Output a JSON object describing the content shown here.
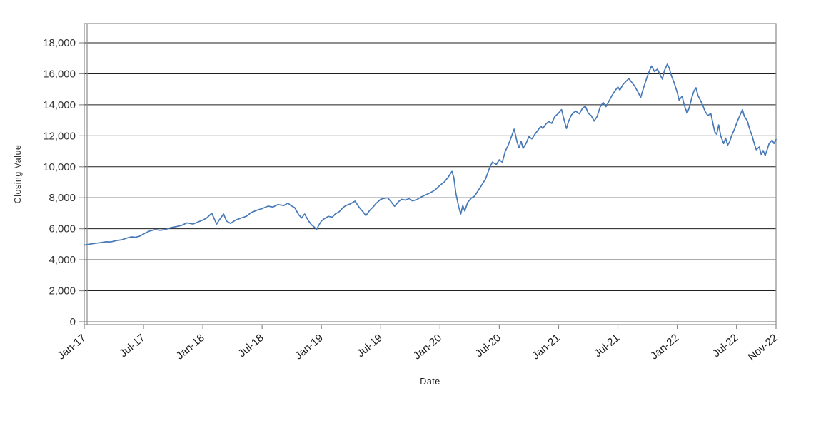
{
  "chart_data": {
    "type": "line",
    "title": "",
    "xlabel": "Date",
    "ylabel": "Closing Value",
    "legend": "none",
    "grid": "horizontal-black-lines-every-2000",
    "xlim_months_since_jan2017": [
      0,
      70
    ],
    "ylim": [
      0,
      18000
    ],
    "x_ticks": [
      {
        "t": 0,
        "label": "Jan-17"
      },
      {
        "t": 6,
        "label": "Jul-17"
      },
      {
        "t": 12,
        "label": "Jan-18"
      },
      {
        "t": 18,
        "label": "Jul-18"
      },
      {
        "t": 24,
        "label": "Jan-19"
      },
      {
        "t": 30,
        "label": "Jul-19"
      },
      {
        "t": 36,
        "label": "Jan-20"
      },
      {
        "t": 42,
        "label": "Jul-20"
      },
      {
        "t": 48,
        "label": "Jan-21"
      },
      {
        "t": 54,
        "label": "Jul-21"
      },
      {
        "t": 60,
        "label": "Jan-22"
      },
      {
        "t": 66,
        "label": "Jul-22"
      },
      {
        "t": 70,
        "label": "Nov-22"
      }
    ],
    "y_ticks": [
      0,
      2000,
      4000,
      6000,
      8000,
      10000,
      12000,
      14000,
      16000,
      18000
    ],
    "y_tick_labels": [
      "0",
      "2,000",
      "4,000",
      "6,000",
      "8,000",
      "10,000",
      "12,000",
      "14,000",
      "16,000",
      "18,000"
    ],
    "colors": {
      "line": "#4779b8",
      "grid": "#1f1f1f",
      "frame": "#8c8c8c",
      "tick": "#8c8c8c",
      "y_label_text": "#333333",
      "x_label_text": "#1a1a1a"
    },
    "series": [
      {
        "name": "Closing Value",
        "color": "#4779b8",
        "points": [
          [
            0,
            4950
          ],
          [
            0.5,
            5000
          ],
          [
            1,
            5050
          ],
          [
            1.6,
            5100
          ],
          [
            2.2,
            5160
          ],
          [
            2.7,
            5150
          ],
          [
            3.3,
            5250
          ],
          [
            3.8,
            5290
          ],
          [
            4.3,
            5400
          ],
          [
            4.8,
            5480
          ],
          [
            5.2,
            5450
          ],
          [
            5.6,
            5520
          ],
          [
            6.1,
            5700
          ],
          [
            6.6,
            5850
          ],
          [
            7.2,
            5950
          ],
          [
            7.7,
            5900
          ],
          [
            8.2,
            5950
          ],
          [
            8.8,
            6080
          ],
          [
            9.4,
            6150
          ],
          [
            9.9,
            6230
          ],
          [
            10.4,
            6380
          ],
          [
            11,
            6300
          ],
          [
            11.6,
            6460
          ],
          [
            12,
            6560
          ],
          [
            12.4,
            6700
          ],
          [
            12.9,
            7000
          ],
          [
            13.4,
            6300
          ],
          [
            13.7,
            6600
          ],
          [
            14.1,
            6950
          ],
          [
            14.4,
            6500
          ],
          [
            14.8,
            6350
          ],
          [
            15.3,
            6550
          ],
          [
            15.9,
            6700
          ],
          [
            16.4,
            6800
          ],
          [
            16.9,
            7050
          ],
          [
            17.5,
            7200
          ],
          [
            18,
            7300
          ],
          [
            18.6,
            7460
          ],
          [
            19.1,
            7400
          ],
          [
            19.6,
            7560
          ],
          [
            20.2,
            7500
          ],
          [
            20.6,
            7660
          ],
          [
            20.9,
            7500
          ],
          [
            21.3,
            7350
          ],
          [
            21.7,
            6900
          ],
          [
            22,
            6700
          ],
          [
            22.3,
            6950
          ],
          [
            22.7,
            6500
          ],
          [
            23,
            6250
          ],
          [
            23.3,
            6100
          ],
          [
            23.5,
            5950
          ],
          [
            23.8,
            6300
          ],
          [
            24,
            6500
          ],
          [
            24.3,
            6650
          ],
          [
            24.7,
            6800
          ],
          [
            25.1,
            6750
          ],
          [
            25.4,
            6950
          ],
          [
            25.8,
            7100
          ],
          [
            26.2,
            7380
          ],
          [
            26.5,
            7500
          ],
          [
            26.9,
            7600
          ],
          [
            27.4,
            7780
          ],
          [
            27.8,
            7400
          ],
          [
            28.2,
            7100
          ],
          [
            28.5,
            6850
          ],
          [
            28.9,
            7200
          ],
          [
            29.3,
            7450
          ],
          [
            29.5,
            7620
          ],
          [
            30,
            7900
          ],
          [
            30.3,
            7960
          ],
          [
            30.7,
            8000
          ],
          [
            31.1,
            7700
          ],
          [
            31.4,
            7450
          ],
          [
            31.8,
            7750
          ],
          [
            32.1,
            7900
          ],
          [
            32.5,
            7850
          ],
          [
            32.9,
            7950
          ],
          [
            33.2,
            7800
          ],
          [
            33.6,
            7860
          ],
          [
            34.1,
            8050
          ],
          [
            34.6,
            8200
          ],
          [
            35.1,
            8350
          ],
          [
            35.5,
            8500
          ],
          [
            36,
            8800
          ],
          [
            36.4,
            9000
          ],
          [
            36.8,
            9300
          ],
          [
            37.2,
            9700
          ],
          [
            37.4,
            9300
          ],
          [
            37.6,
            8300
          ],
          [
            37.9,
            7400
          ],
          [
            38.1,
            6950
          ],
          [
            38.3,
            7500
          ],
          [
            38.5,
            7150
          ],
          [
            38.8,
            7700
          ],
          [
            39.2,
            8000
          ],
          [
            39.5,
            8100
          ],
          [
            39.9,
            8500
          ],
          [
            40.2,
            8800
          ],
          [
            40.6,
            9200
          ],
          [
            41,
            9900
          ],
          [
            41.3,
            10300
          ],
          [
            41.7,
            10150
          ],
          [
            42,
            10450
          ],
          [
            42.3,
            10300
          ],
          [
            42.6,
            11000
          ],
          [
            42.9,
            11400
          ],
          [
            43.2,
            11900
          ],
          [
            43.5,
            12430
          ],
          [
            43.8,
            11600
          ],
          [
            44,
            11230
          ],
          [
            44.2,
            11650
          ],
          [
            44.4,
            11180
          ],
          [
            44.7,
            11500
          ],
          [
            45,
            11950
          ],
          [
            45.3,
            11800
          ],
          [
            45.6,
            12100
          ],
          [
            45.9,
            12350
          ],
          [
            46.2,
            12620
          ],
          [
            46.4,
            12470
          ],
          [
            46.7,
            12750
          ],
          [
            47,
            12920
          ],
          [
            47.3,
            12800
          ],
          [
            47.6,
            13230
          ],
          [
            48,
            13460
          ],
          [
            48.3,
            13690
          ],
          [
            48.5,
            13150
          ],
          [
            48.8,
            12470
          ],
          [
            49,
            12920
          ],
          [
            49.3,
            13350
          ],
          [
            49.7,
            13600
          ],
          [
            50.1,
            13420
          ],
          [
            50.4,
            13760
          ],
          [
            50.7,
            13920
          ],
          [
            51,
            13450
          ],
          [
            51.3,
            13300
          ],
          [
            51.6,
            12950
          ],
          [
            51.9,
            13250
          ],
          [
            52.2,
            13850
          ],
          [
            52.5,
            14150
          ],
          [
            52.8,
            13880
          ],
          [
            53.1,
            14250
          ],
          [
            53.4,
            14600
          ],
          [
            53.7,
            14900
          ],
          [
            54,
            15150
          ],
          [
            54.2,
            14950
          ],
          [
            54.5,
            15300
          ],
          [
            54.8,
            15500
          ],
          [
            55.1,
            15690
          ],
          [
            55.4,
            15450
          ],
          [
            55.7,
            15200
          ],
          [
            56,
            14850
          ],
          [
            56.3,
            14480
          ],
          [
            56.6,
            15100
          ],
          [
            56.9,
            15700
          ],
          [
            57.1,
            16050
          ],
          [
            57.4,
            16500
          ],
          [
            57.7,
            16150
          ],
          [
            58,
            16300
          ],
          [
            58.3,
            15900
          ],
          [
            58.5,
            15650
          ],
          [
            58.7,
            16200
          ],
          [
            59,
            16620
          ],
          [
            59.2,
            16350
          ],
          [
            59.4,
            15900
          ],
          [
            59.7,
            15400
          ],
          [
            60,
            14800
          ],
          [
            60.2,
            14300
          ],
          [
            60.5,
            14550
          ],
          [
            60.7,
            14000
          ],
          [
            61,
            13450
          ],
          [
            61.2,
            13780
          ],
          [
            61.5,
            14500
          ],
          [
            61.7,
            14900
          ],
          [
            61.9,
            15100
          ],
          [
            62.1,
            14600
          ],
          [
            62.3,
            14350
          ],
          [
            62.6,
            13950
          ],
          [
            62.8,
            13600
          ],
          [
            63.1,
            13300
          ],
          [
            63.4,
            13450
          ],
          [
            63.6,
            12850
          ],
          [
            63.8,
            12250
          ],
          [
            64,
            12100
          ],
          [
            64.2,
            12700
          ],
          [
            64.4,
            12000
          ],
          [
            64.7,
            11500
          ],
          [
            64.9,
            11850
          ],
          [
            65.1,
            11400
          ],
          [
            65.3,
            11600
          ],
          [
            65.5,
            12000
          ],
          [
            65.8,
            12450
          ],
          [
            66.1,
            12950
          ],
          [
            66.4,
            13400
          ],
          [
            66.6,
            13690
          ],
          [
            66.8,
            13250
          ],
          [
            67.1,
            12950
          ],
          [
            67.3,
            12500
          ],
          [
            67.6,
            11950
          ],
          [
            67.8,
            11500
          ],
          [
            68,
            11100
          ],
          [
            68.3,
            11280
          ],
          [
            68.5,
            10800
          ],
          [
            68.7,
            11050
          ],
          [
            68.9,
            10720
          ],
          [
            69.1,
            11100
          ],
          [
            69.3,
            11500
          ],
          [
            69.6,
            11720
          ],
          [
            69.8,
            11500
          ],
          [
            70,
            11760
          ]
        ]
      }
    ]
  },
  "labels": {
    "x_axis_title": "Date",
    "y_axis_title": "Closing Value"
  }
}
